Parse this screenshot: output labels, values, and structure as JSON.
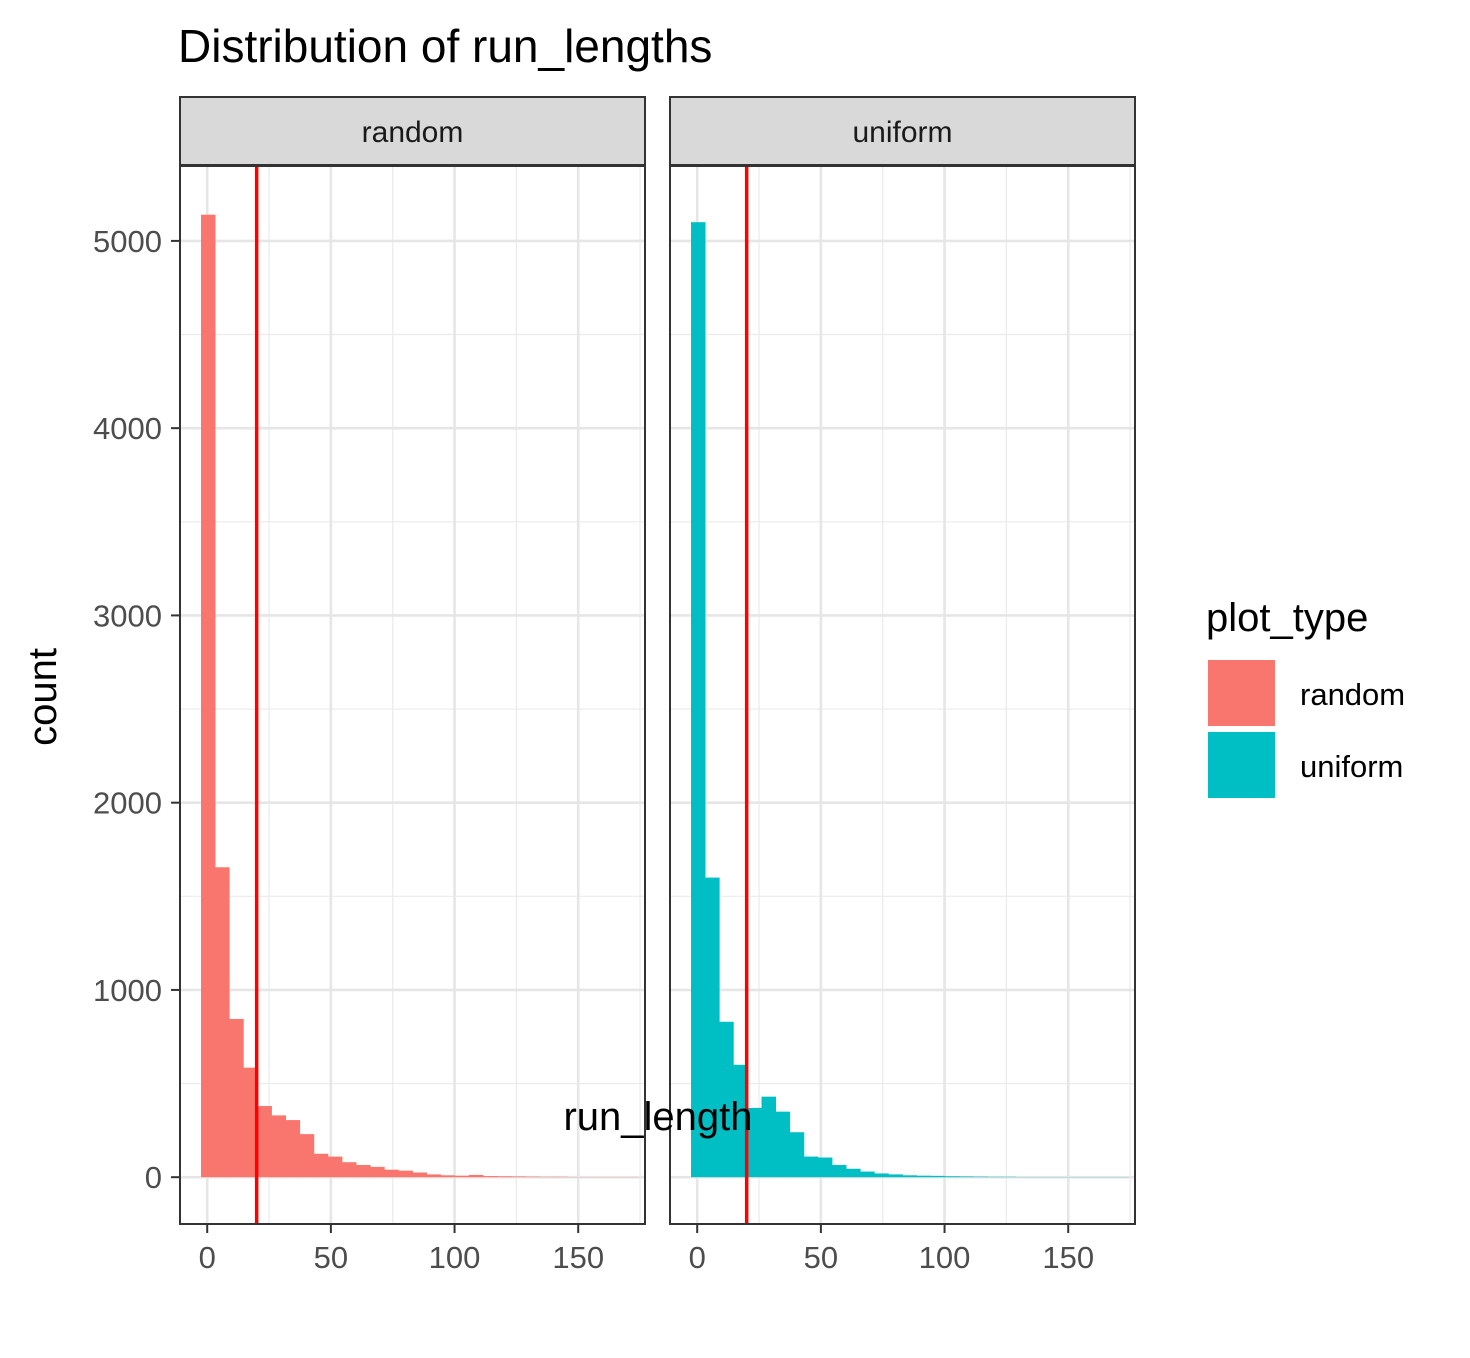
{
  "chart_data": {
    "type": "bar",
    "subtype": "histogram",
    "title": "Distribution of run_lengths",
    "xlabel": "run_length",
    "ylabel": "count",
    "xlim": [
      -11,
      177
    ],
    "ylim": [
      -250,
      5400
    ],
    "x_ticks": [
      0,
      50,
      100,
      150
    ],
    "x_tick_labels": [
      "0",
      "50",
      "100",
      "150"
    ],
    "y_ticks": [
      0,
      1000,
      2000,
      3000,
      4000,
      5000
    ],
    "y_tick_labels": [
      "0",
      "1000",
      "2000",
      "3000",
      "4000",
      "5000"
    ],
    "grid": true,
    "bin_width": 5.7,
    "bin_start": -2.5,
    "vline": {
      "x": 20,
      "color": "#FF0000"
    },
    "legend": {
      "title": "plot_type",
      "position": "right",
      "items": [
        {
          "label": "random",
          "color": "#F8766D"
        },
        {
          "label": "uniform",
          "color": "#00BFC4"
        }
      ]
    },
    "facets": [
      {
        "name": "random",
        "color": "#F8766D",
        "values": [
          5140,
          1655,
          845,
          585,
          380,
          330,
          305,
          230,
          125,
          110,
          80,
          65,
          55,
          40,
          35,
          25,
          15,
          10,
          8,
          12,
          6,
          5,
          4,
          3,
          2,
          2,
          1,
          1,
          1,
          1,
          1
        ]
      },
      {
        "name": "uniform",
        "color": "#00BFC4",
        "values": [
          5100,
          1600,
          830,
          600,
          370,
          430,
          350,
          240,
          110,
          105,
          65,
          45,
          30,
          20,
          15,
          10,
          8,
          7,
          5,
          4,
          3,
          2,
          2,
          1,
          1,
          1,
          1,
          1,
          1,
          1,
          1
        ]
      }
    ]
  }
}
